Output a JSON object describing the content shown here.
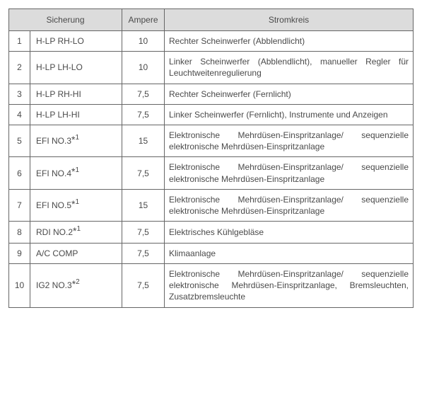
{
  "table": {
    "headers": {
      "fuse": "Sicherung",
      "ampere": "Ampere",
      "circuit": "Stromkreis"
    },
    "rows": [
      {
        "num": "1",
        "fuse": "H-LP RH-LO",
        "note": "",
        "amp": "10",
        "circuit": "Rechter Scheinwerfer (Abblendlicht)"
      },
      {
        "num": "2",
        "fuse": "H-LP LH-LO",
        "note": "",
        "amp": "10",
        "circuit": "Linker Scheinwerfer (Abblendlicht), manueller Regler für Leuchtweitenregulierung"
      },
      {
        "num": "3",
        "fuse": "H-LP RH-HI",
        "note": "",
        "amp": "7,5",
        "circuit": "Rechter Scheinwerfer (Fernlicht)"
      },
      {
        "num": "4",
        "fuse": "H-LP LH-HI",
        "note": "",
        "amp": "7,5",
        "circuit": "Linker Scheinwerfer (Fernlicht), Instrumente und Anzeigen"
      },
      {
        "num": "5",
        "fuse": "EFI NO.3",
        "note": "*1",
        "amp": "15",
        "circuit": "Elektronische Mehrdüsen-Einspritzanlage/ sequenzielle elektronische Mehrdüsen-Einspritzanlage"
      },
      {
        "num": "6",
        "fuse": "EFI NO.4",
        "note": "*1",
        "amp": "7,5",
        "circuit": "Elektronische Mehrdüsen-Einspritzanlage/ sequenzielle elektronische Mehrdüsen-Einspritzanlage"
      },
      {
        "num": "7",
        "fuse": "EFI NO.5",
        "note": "*1",
        "amp": "15",
        "circuit": "Elektronische Mehrdüsen-Einspritzanlage/ sequenzielle elektronische Mehrdüsen-Einspritzanlage"
      },
      {
        "num": "8",
        "fuse": "RDI NO.2",
        "note": "*1",
        "amp": "7,5",
        "circuit": "Elektrisches Kühlgebläse"
      },
      {
        "num": "9",
        "fuse": "A/C COMP",
        "note": "",
        "amp": "7,5",
        "circuit": "Klimaanlage"
      },
      {
        "num": "10",
        "fuse": "IG2 NO.3",
        "note": "*2",
        "amp": "7,5",
        "circuit": "Elektronische Mehrdüsen-Einspritzanlage/ sequenzielle elektronische Mehrdüsen-Einspritzanlage, Bremsleuchten, Zusatzbremsleuchte"
      }
    ]
  }
}
